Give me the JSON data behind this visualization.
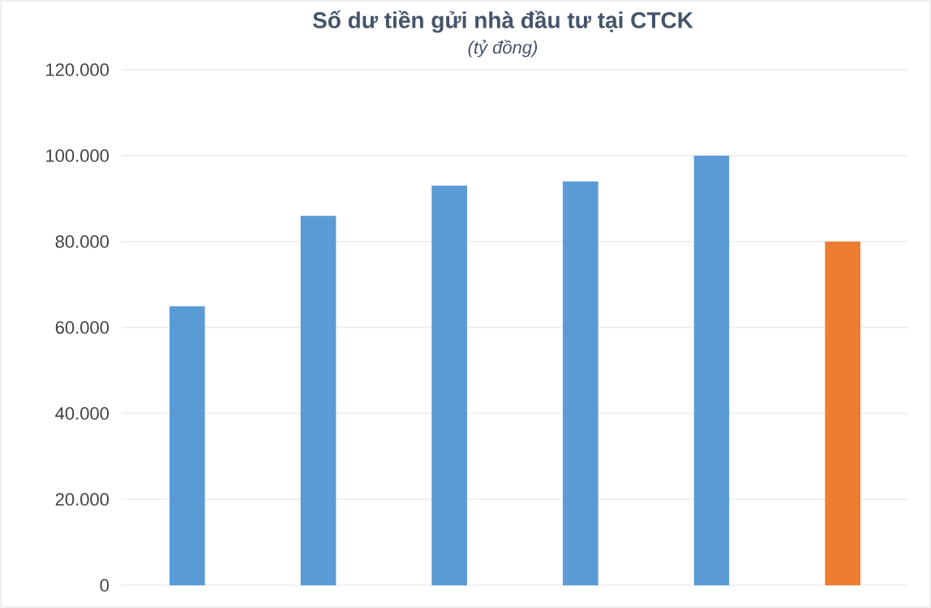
{
  "chart_data": {
    "type": "bar",
    "title": "Số dư tiền gửi nhà đầu tư tại CTCK",
    "subtitle": "(tỷ đồng)",
    "categories": [
      null,
      null,
      null,
      null,
      null,
      null
    ],
    "values": [
      65000,
      86000,
      93000,
      94000,
      100000,
      80000
    ],
    "colors": [
      "#5b9bd5",
      "#5b9bd5",
      "#5b9bd5",
      "#5b9bd5",
      "#5b9bd5",
      "#ed7d31"
    ],
    "ylim": [
      0,
      120000
    ],
    "yticks": [
      {
        "value": 0,
        "label": "0"
      },
      {
        "value": 20000,
        "label": "20.000"
      },
      {
        "value": 40000,
        "label": "40.000"
      },
      {
        "value": 60000,
        "label": "60.000"
      },
      {
        "value": 80000,
        "label": "80.000"
      },
      {
        "value": 100000,
        "label": "100.000"
      },
      {
        "value": 120000,
        "label": "120.000"
      }
    ],
    "grid": "y"
  }
}
